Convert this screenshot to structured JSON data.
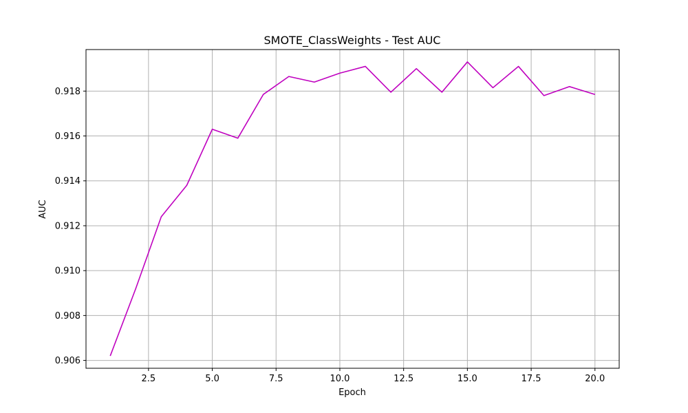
{
  "chart_data": {
    "type": "line",
    "title": "SMOTE_ClassWeights - Test AUC",
    "xlabel": "Epoch",
    "ylabel": "AUC",
    "xlim": [
      0.05,
      20.95
    ],
    "ylim": [
      0.90565,
      0.91985
    ],
    "xticks": [
      2.5,
      5.0,
      7.5,
      10.0,
      12.5,
      15.0,
      17.5,
      20.0
    ],
    "xtick_labels": [
      "2.5",
      "5.0",
      "7.5",
      "10.0",
      "12.5",
      "15.0",
      "17.5",
      "20.0"
    ],
    "yticks": [
      0.906,
      0.908,
      0.91,
      0.912,
      0.914,
      0.916,
      0.918
    ],
    "ytick_labels": [
      "0.906",
      "0.908",
      "0.910",
      "0.912",
      "0.914",
      "0.916",
      "0.918"
    ],
    "grid": true,
    "color": "#bf00bf",
    "series": [
      {
        "x": [
          1,
          2,
          3,
          4,
          5,
          6,
          7,
          8,
          9,
          10,
          11,
          12,
          13,
          14,
          15,
          16,
          17,
          18,
          19,
          20
        ],
        "values": [
          0.9062,
          0.9092,
          0.9124,
          0.9138,
          0.9163,
          0.9159,
          0.91785,
          0.91865,
          0.9184,
          0.9188,
          0.9191,
          0.91795,
          0.919,
          0.91795,
          0.9193,
          0.91815,
          0.9191,
          0.9178,
          0.9182,
          0.91785
        ]
      }
    ]
  }
}
